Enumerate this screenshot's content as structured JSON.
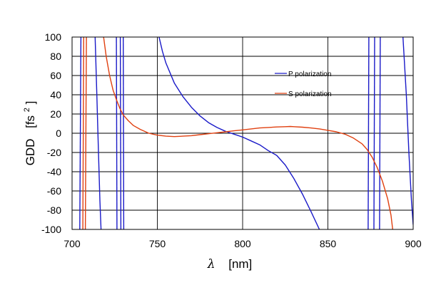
{
  "chart_data": {
    "type": "line",
    "xlabel": {
      "symbol": "λ",
      "unit": "[nm]"
    },
    "ylabel": {
      "name": "GDD",
      "unit_open": "[fs",
      "unit_sup": "2",
      "unit_close": "]"
    },
    "xlim": [
      700,
      900
    ],
    "ylim": [
      -100,
      100
    ],
    "xticks": [
      700,
      750,
      800,
      850,
      900
    ],
    "yticks": [
      -100,
      -80,
      -60,
      -40,
      -20,
      0,
      20,
      40,
      60,
      80,
      100
    ],
    "grid": true,
    "legend_position": "right-upper",
    "series": [
      {
        "name": "P polarization",
        "color": "#1a1ac8",
        "segments": [
          [
            [
              704.5,
              -100
            ],
            [
              705.2,
              100
            ]
          ],
          [
            [
              713.5,
              100
            ],
            [
              714.5,
              40
            ],
            [
              715.5,
              -20
            ],
            [
              716.3,
              -70
            ],
            [
              717,
              -100
            ]
          ],
          [
            [
              726,
              100
            ],
            [
              726.3,
              -100
            ]
          ],
          [
            [
              728.3,
              100
            ],
            [
              728.6,
              -100
            ]
          ],
          [
            [
              730,
              100
            ],
            [
              730.3,
              -100
            ]
          ],
          [
            [
              751,
              100
            ],
            [
              753,
              85
            ],
            [
              755,
              73
            ],
            [
              760,
              52
            ],
            [
              765,
              38
            ],
            [
              770,
              27
            ],
            [
              775,
              18
            ],
            [
              780,
              11
            ],
            [
              785,
              6
            ],
            [
              790,
              2
            ],
            [
              795,
              -1
            ],
            [
              800,
              -4
            ],
            [
              805,
              -8
            ],
            [
              810,
              -12
            ],
            [
              815,
              -18
            ],
            [
              820,
              -23
            ],
            [
              825,
              -33
            ],
            [
              830,
              -47
            ],
            [
              835,
              -63
            ],
            [
              840,
              -81
            ],
            [
              845,
              -100
            ]
          ],
          [
            [
              873.6,
              -100
            ],
            [
              874,
              100
            ]
          ],
          [
            [
              877,
              -100
            ],
            [
              877.4,
              100
            ]
          ],
          [
            [
              880.3,
              -100
            ],
            [
              880.7,
              100
            ]
          ],
          [
            [
              894,
              100
            ],
            [
              896,
              40
            ],
            [
              897.5,
              -20
            ],
            [
              899,
              -70
            ],
            [
              900,
              -95
            ]
          ]
        ]
      },
      {
        "name": "S polarization",
        "color": "#e04010",
        "segments": [
          [
            [
              706.3,
              -100
            ],
            [
              706.8,
              100
            ]
          ],
          [
            [
              707.8,
              -100
            ],
            [
              708.4,
              100
            ]
          ],
          [
            [
              718.5,
              100
            ],
            [
              720,
              80
            ],
            [
              722,
              60
            ],
            [
              724,
              45
            ],
            [
              726,
              35
            ],
            [
              728,
              26
            ],
            [
              730,
              19
            ],
            [
              733,
              13
            ],
            [
              736,
              8
            ],
            [
              740,
              4
            ],
            [
              745,
              0
            ],
            [
              750,
              -2
            ],
            [
              755,
              -3
            ],
            [
              760,
              -3.5
            ],
            [
              765,
              -3
            ],
            [
              770,
              -2.5
            ],
            [
              775,
              -1.5
            ],
            [
              780,
              -0.5
            ],
            [
              785,
              0.5
            ],
            [
              790,
              1.5
            ],
            [
              795,
              2.5
            ],
            [
              800,
              3.5
            ],
            [
              805,
              4.5
            ],
            [
              810,
              5.5
            ],
            [
              815,
              6.0
            ],
            [
              820,
              6.5
            ],
            [
              825,
              6.8
            ],
            [
              828,
              7.0
            ],
            [
              830,
              6.8
            ],
            [
              835,
              6.3
            ],
            [
              840,
              5.5
            ],
            [
              845,
              4.5
            ],
            [
              850,
              3.0
            ],
            [
              855,
              1.5
            ],
            [
              860,
              -1
            ],
            [
              865,
              -5
            ],
            [
              870,
              -11
            ],
            [
              873,
              -17
            ],
            [
              876,
              -25
            ],
            [
              879,
              -36
            ],
            [
              882,
              -50
            ],
            [
              885,
              -68
            ],
            [
              887,
              -85
            ],
            [
              888,
              -100
            ]
          ]
        ]
      }
    ]
  }
}
